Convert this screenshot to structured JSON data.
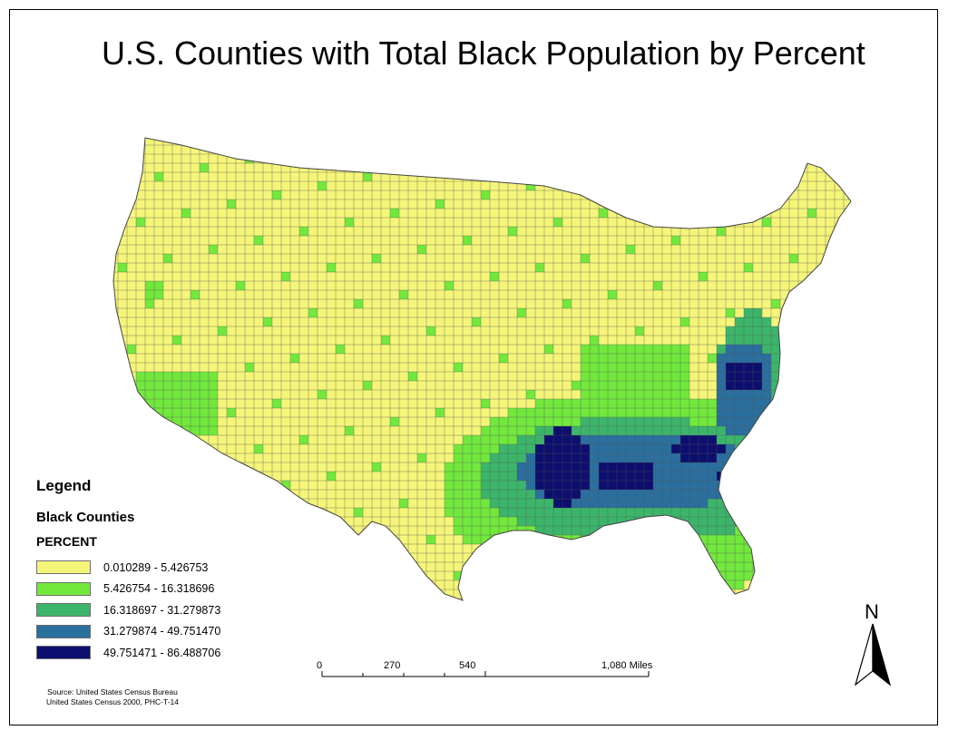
{
  "title": "U.S. Counties with Total Black Population by Percent",
  "legend": {
    "title": "Legend",
    "layer": "Black Counties",
    "field": "PERCENT",
    "classes": [
      {
        "label": "0.010289 - 5.426753",
        "color": "#f5f57a"
      },
      {
        "label": "5.426754 - 16.318696",
        "color": "#72e83c"
      },
      {
        "label": "16.318697 - 31.279873",
        "color": "#3cb56b"
      },
      {
        "label": "31.279874 - 49.751470",
        "color": "#2a6f9e"
      },
      {
        "label": "49.751471 - 86.488706",
        "color": "#0d0f6e"
      }
    ]
  },
  "scale_bar": {
    "labels": [
      "0",
      "270",
      "540",
      "1,080 Miles"
    ]
  },
  "north_arrow": {
    "letter": "N",
    "icon": "north-arrow-icon"
  },
  "source": {
    "line1": "Source: United States Census Bureau",
    "line2": "United States Census 2000, PHC-T-14"
  },
  "colors": {
    "county_border": "#555555",
    "no_data": "#ffffff"
  }
}
